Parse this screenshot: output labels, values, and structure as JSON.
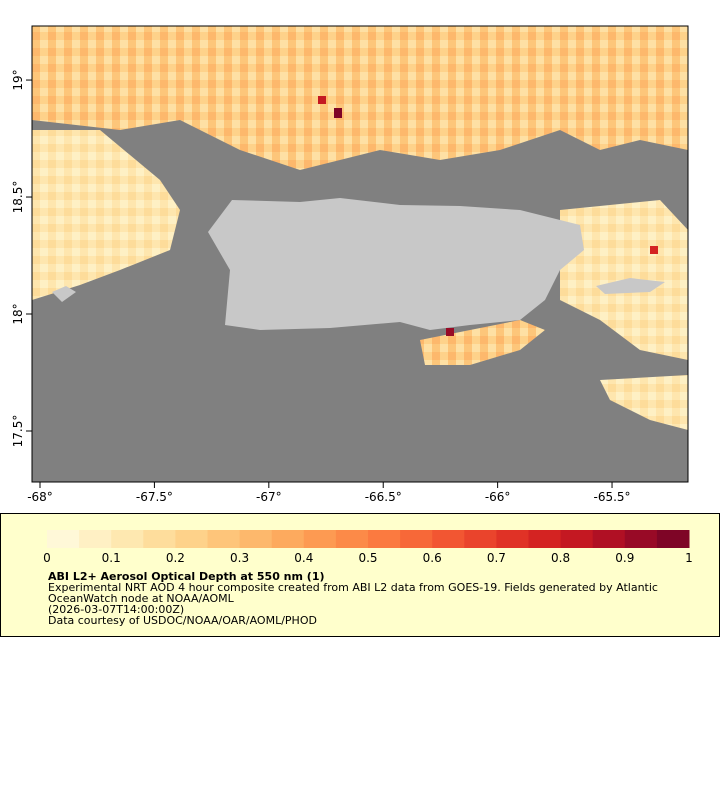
{
  "map": {
    "xlim": [
      -68.035,
      -65.168
    ],
    "ylim": [
      17.282,
      19.231
    ],
    "xticks": [
      {
        "value": -68,
        "label": "-68°"
      },
      {
        "value": -67.5,
        "label": "-67.5°"
      },
      {
        "value": -67,
        "label": "-67°"
      },
      {
        "value": -66.5,
        "label": "-66.5°"
      },
      {
        "value": -66,
        "label": "-66°"
      },
      {
        "value": -65.5,
        "label": "-65.5°"
      }
    ],
    "yticks": [
      {
        "value": 19,
        "label": "19°"
      },
      {
        "value": 18.5,
        "label": "18.5°"
      },
      {
        "value": 18,
        "label": "18°"
      },
      {
        "value": 17.5,
        "label": "17.5°"
      }
    ]
  },
  "colorbar": {
    "range": [
      0,
      1
    ],
    "ticks": [
      0,
      0.1,
      0.2,
      0.3,
      0.4,
      0.5,
      0.6,
      0.7,
      0.8,
      0.9,
      1
    ],
    "colors": [
      "#fff8d8",
      "#fff0c4",
      "#fee8b0",
      "#fedd9c",
      "#fed28a",
      "#fec57a",
      "#fdb86c",
      "#fdaa5e",
      "#fd9a52",
      "#fc8a48",
      "#fb7a40",
      "#f76838",
      "#f25632",
      "#ea442c",
      "#e03226",
      "#d42322",
      "#c41822",
      "#b01024",
      "#980a26",
      "#7e0526"
    ]
  },
  "caption": {
    "title": "ABI L2+ Aerosol Optical Depth at 550 nm (1)",
    "lines": [
      "Experimental NRT AOD 4 hour composite created from ABI L2 data from GOES-19. Fields generated by Atlantic",
      "OceanWatch node at NOAA/AOML",
      "(2026-03-07T14:00:00Z)",
      "Data courtesy of USDOC/NOAA/OAR/AOML/PHOD"
    ]
  }
}
